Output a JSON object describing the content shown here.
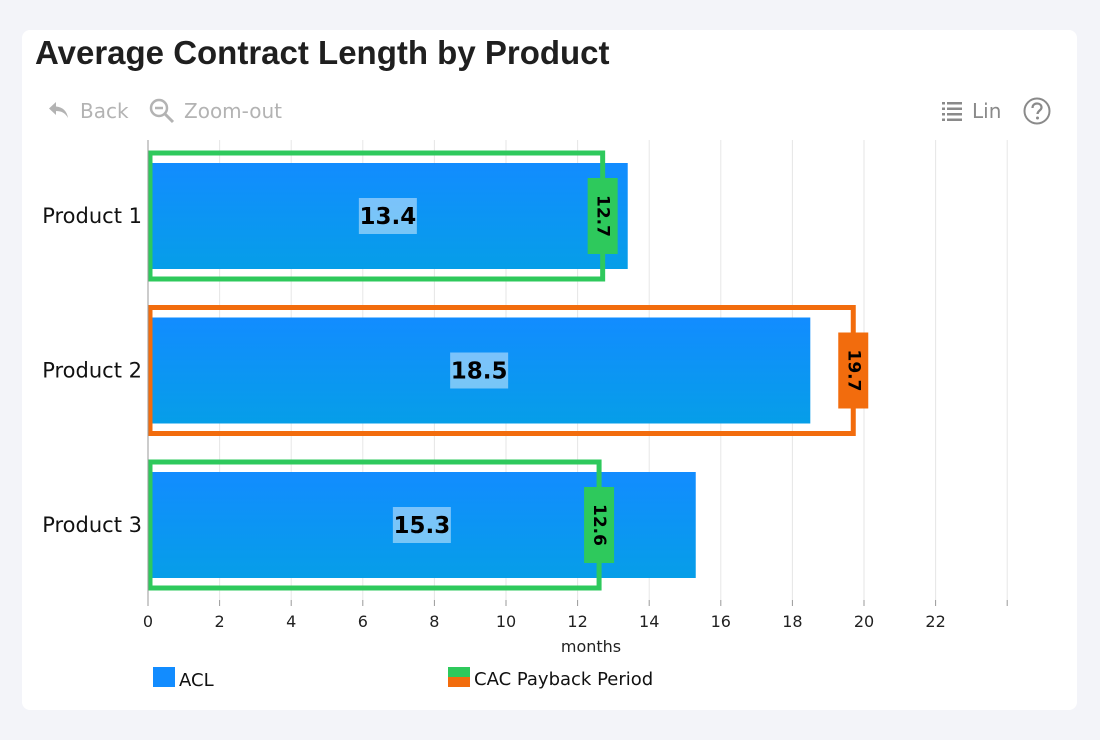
{
  "header": {
    "title": "Average Contract Length by Product"
  },
  "toolbar": {
    "back_label": "Back",
    "zoom_out_label": "Zoom-out",
    "scale_label": "Lin",
    "back_icon": "undo-arrow-icon",
    "zoom_out_icon": "magnifier-minus-icon",
    "scale_icon": "list-icon",
    "help_icon": "question-circle-icon"
  },
  "colors": {
    "bar": "#128cff",
    "bar_bottom": "#069ee8",
    "target_good": "#2ec95c",
    "target_bad": "#f26c0d",
    "grid": "#e6e6e6"
  },
  "chart_data": {
    "type": "bar",
    "orientation": "horizontal",
    "title": "Average Contract Length by Product",
    "xlabel": "months",
    "ylabel": "",
    "categories": [
      "Product 1",
      "Product 2",
      "Product 3"
    ],
    "series": [
      {
        "name": "ACL",
        "values": [
          13.4,
          18.5,
          15.3
        ]
      },
      {
        "name": "CAC Payback Period",
        "values": [
          12.7,
          19.7,
          12.6
        ]
      }
    ],
    "xlim": [
      0,
      24
    ],
    "xticks": [
      0,
      2,
      4,
      6,
      8,
      10,
      12,
      14,
      16,
      18,
      20,
      22
    ],
    "grid": true,
    "legend": "bottom-left"
  }
}
